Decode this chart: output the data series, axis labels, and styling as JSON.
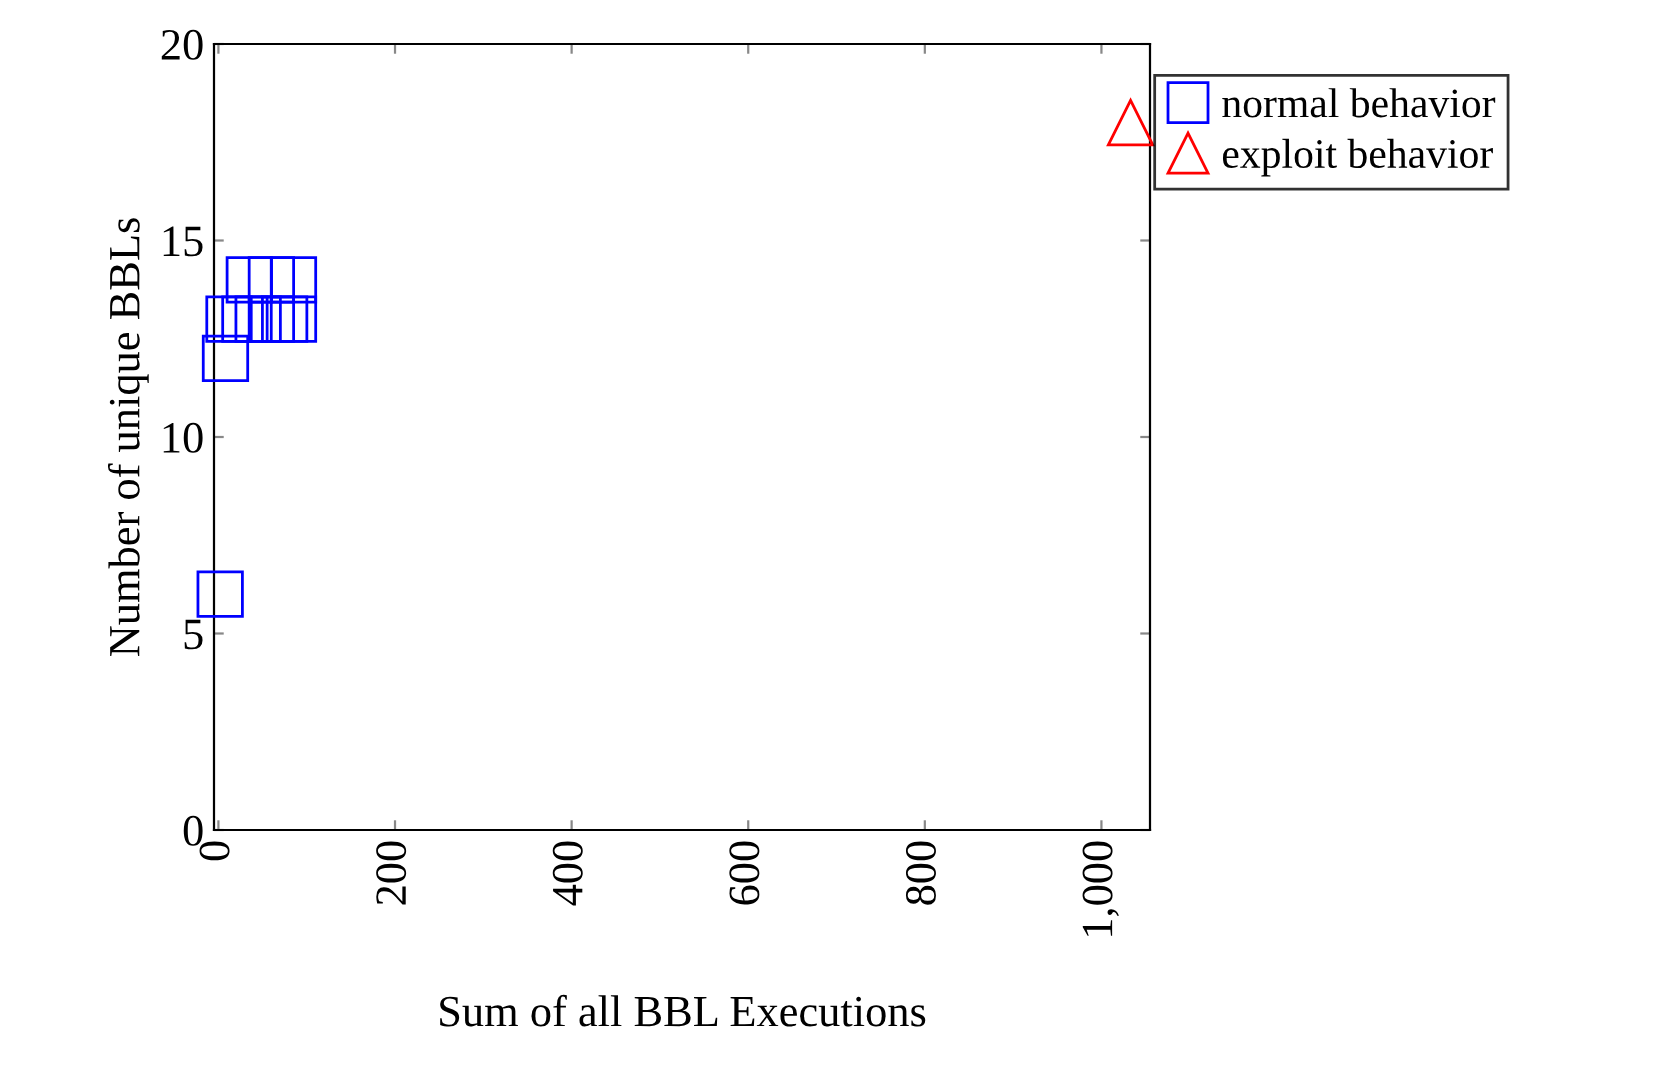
{
  "chart_data": {
    "type": "scatter",
    "xlabel": "Sum of all BBL Executions",
    "ylabel": "Number of unique BBLs",
    "xlim": [
      -5,
      1055
    ],
    "ylim": [
      0,
      20
    ],
    "xticks": [
      0,
      200,
      400,
      600,
      800,
      {
        "value": 1000,
        "label": "1,000"
      }
    ],
    "yticks": [
      0,
      5,
      10,
      15,
      20
    ],
    "grid": false,
    "legend": "top right",
    "series": [
      {
        "name": "normal behavior",
        "color": "#0000ff",
        "marker": "square",
        "x": [
          2,
          8,
          12,
          30,
          45,
          60,
          75,
          85,
          35,
          60,
          85
        ],
        "values": [
          6,
          12,
          13,
          13,
          13,
          13,
          13,
          13,
          14,
          14,
          14
        ]
      },
      {
        "name": "exploit behavior",
        "color": "#ff0000",
        "marker": "triangle",
        "x": [
          1033
        ],
        "values": [
          18
        ]
      }
    ]
  }
}
